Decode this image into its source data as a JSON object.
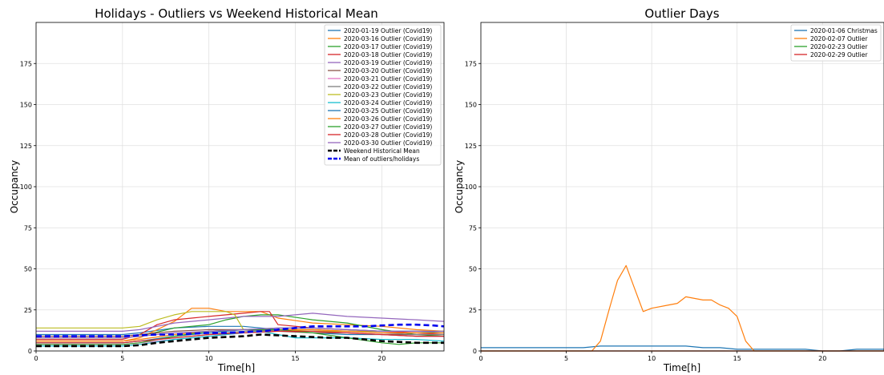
{
  "chart_data": [
    {
      "type": "line",
      "title": "Holidays - Outliers vs Weekend Historical Mean",
      "xlabel": "Time[h]",
      "ylabel": "Occupancy",
      "xlim": [
        0,
        23.6
      ],
      "ylim": [
        0,
        200
      ],
      "xticks": [
        0,
        5,
        10,
        15,
        20
      ],
      "yticks": [
        0,
        25,
        50,
        75,
        100,
        125,
        150,
        175
      ],
      "grid": true,
      "legend": "top-right",
      "series": [
        {
          "name": "2020-01-19 Outlier (Covid19)",
          "color": "#1f77b4",
          "x": [
            0,
            5,
            6,
            8,
            10,
            12,
            13,
            14,
            16,
            18,
            20,
            22,
            23.6
          ],
          "y": [
            10,
            10,
            11,
            14,
            15,
            15,
            14,
            13,
            11,
            10,
            10,
            9,
            9
          ]
        },
        {
          "name": "2020-03-16 Outlier (Covid19)",
          "color": "#ff7f0e",
          "x": [
            0,
            5,
            6,
            7,
            8,
            9,
            10,
            11,
            12,
            13,
            14,
            16,
            18,
            20,
            22,
            23.6
          ],
          "y": [
            6,
            6,
            8,
            13,
            18,
            26,
            26,
            24,
            24,
            24,
            20,
            17,
            16,
            15,
            13,
            12
          ]
        },
        {
          "name": "2020-03-17 Outlier (Covid19)",
          "color": "#2ca02c",
          "x": [
            0,
            5,
            6,
            8,
            10,
            11,
            12,
            13,
            14,
            16,
            18,
            20,
            22,
            23.6
          ],
          "y": [
            8,
            8,
            9,
            14,
            16,
            19,
            21,
            22,
            22,
            19,
            17,
            13,
            10,
            9
          ]
        },
        {
          "name": "2020-03-18 Outlier (Covid19)",
          "color": "#d62728",
          "x": [
            0,
            5,
            6,
            7,
            8,
            9,
            10,
            11,
            12,
            13,
            13.5,
            14,
            16,
            18,
            20,
            22,
            23.6
          ],
          "y": [
            7,
            7,
            10,
            16,
            19,
            20,
            21,
            22,
            23,
            24,
            24,
            16,
            14,
            13,
            12,
            11,
            10
          ]
        },
        {
          "name": "2020-03-19 Outlier (Covid19)",
          "color": "#9467bd",
          "x": [
            0,
            5,
            6,
            8,
            10,
            12,
            14,
            15,
            16,
            18,
            20,
            22,
            23.6
          ],
          "y": [
            12,
            12,
            13,
            17,
            19,
            21,
            21,
            22,
            23,
            21,
            20,
            19,
            18
          ]
        },
        {
          "name": "2020-03-20 Outlier (Covid19)",
          "color": "#8c564b",
          "x": [
            0,
            5,
            6,
            8,
            10,
            12,
            14,
            16,
            18,
            20,
            22,
            23.6
          ],
          "y": [
            9,
            9,
            10,
            12,
            13,
            13,
            12,
            11,
            11,
            10,
            10,
            10
          ]
        },
        {
          "name": "2020-03-21 Outlier (Covid19)",
          "color": "#e377c2",
          "x": [
            0,
            5,
            6,
            8,
            10,
            12,
            14,
            16,
            18,
            20,
            22,
            23.6
          ],
          "y": [
            4,
            4,
            5,
            7,
            9,
            11,
            12,
            12,
            11,
            10,
            9,
            9
          ]
        },
        {
          "name": "2020-03-22 Outlier (Covid19)",
          "color": "#7f7f7f",
          "x": [
            0,
            5,
            6,
            8,
            10,
            12,
            14,
            16,
            18,
            20,
            22,
            23.6
          ],
          "y": [
            5,
            5,
            6,
            8,
            10,
            12,
            13,
            13,
            12,
            11,
            10,
            10
          ]
        },
        {
          "name": "2020-03-23 Outlier (Covid19)",
          "color": "#bcbd22",
          "x": [
            0,
            5,
            6,
            7,
            8,
            9,
            10,
            11,
            11.5,
            12,
            14,
            16,
            18,
            20,
            22,
            23.6
          ],
          "y": [
            14,
            14,
            15,
            19,
            22,
            24,
            24,
            24,
            22,
            13,
            13,
            12,
            12,
            12,
            12,
            12
          ]
        },
        {
          "name": "2020-03-24 Outlier (Covid19)",
          "color": "#17becf",
          "x": [
            0,
            5,
            6,
            8,
            10,
            12,
            13,
            14,
            15,
            16,
            18,
            20,
            22,
            23.6
          ],
          "y": [
            3,
            3,
            4,
            7,
            9,
            11,
            12,
            10,
            8,
            8,
            8,
            7,
            7,
            6
          ]
        },
        {
          "name": "2020-03-25 Outlier (Covid19)",
          "color": "#1f77b4",
          "x": [
            0,
            5,
            6,
            8,
            10,
            12,
            14,
            16,
            18,
            20,
            22,
            23.6
          ],
          "y": [
            5,
            5,
            6,
            9,
            11,
            13,
            14,
            14,
            13,
            12,
            12,
            11
          ]
        },
        {
          "name": "2020-03-26 Outlier (Covid19)",
          "color": "#ff7f0e",
          "x": [
            0,
            5,
            6,
            8,
            10,
            12,
            14,
            16,
            18,
            20,
            22,
            23.6
          ],
          "y": [
            6,
            6,
            7,
            10,
            12,
            13,
            13,
            13,
            12,
            11,
            11,
            11
          ]
        },
        {
          "name": "2020-03-27 Outlier (Covid19)",
          "color": "#2ca02c",
          "x": [
            0,
            5,
            6,
            8,
            10,
            12,
            14,
            16,
            18,
            20,
            21,
            22,
            23.6
          ],
          "y": [
            4,
            4,
            5,
            9,
            12,
            13,
            13,
            11,
            8,
            5,
            4,
            5,
            5
          ]
        },
        {
          "name": "2020-03-28 Outlier (Covid19)",
          "color": "#d62728",
          "x": [
            0,
            5,
            6,
            8,
            10,
            12,
            14,
            16,
            18,
            20,
            22,
            23.6
          ],
          "y": [
            5,
            5,
            6,
            8,
            10,
            11,
            12,
            12,
            11,
            10,
            9,
            9
          ]
        },
        {
          "name": "2020-03-30 Outlier (Covid19)",
          "color": "#9467bd",
          "x": [
            0,
            5,
            6,
            8,
            10,
            12,
            14,
            16,
            18,
            20,
            22,
            23.6
          ],
          "y": [
            8,
            8,
            9,
            11,
            12,
            13,
            14,
            14,
            13,
            12,
            12,
            12
          ]
        },
        {
          "name": "Weekend Historical Mean",
          "color": "#000000",
          "dashed": true,
          "x": [
            0,
            5,
            6,
            7,
            8,
            9,
            10,
            11,
            12,
            13,
            14,
            15,
            16,
            17,
            18,
            19,
            20,
            21,
            22,
            23,
            23.6
          ],
          "y": [
            3,
            3,
            3.5,
            5,
            6,
            7,
            8,
            8.5,
            9,
            10,
            9.5,
            9,
            8.5,
            8,
            8,
            7,
            6,
            5.5,
            5,
            5,
            5
          ]
        },
        {
          "name": "Mean of outliers/holidays",
          "color": "#0000ee",
          "dashed": true,
          "x": [
            0,
            5,
            6,
            7,
            8,
            9,
            10,
            11,
            12,
            13,
            14,
            15,
            16,
            17,
            18,
            19,
            20,
            21,
            22,
            23,
            23.6
          ],
          "y": [
            9,
            9,
            9.5,
            10,
            10,
            10.5,
            11,
            11,
            11.5,
            12,
            13,
            14,
            15,
            15,
            15,
            15,
            15.5,
            16,
            16,
            15.5,
            15
          ]
        }
      ]
    },
    {
      "type": "line",
      "title": "Outlier Days",
      "xlabel": "Time[h]",
      "ylabel": "Occupancy",
      "xlim": [
        0,
        23.6
      ],
      "ylim": [
        0,
        200
      ],
      "xticks": [
        0,
        5,
        10,
        15,
        20
      ],
      "yticks": [
        0,
        25,
        50,
        75,
        100,
        125,
        150,
        175
      ],
      "grid": true,
      "legend": "top-right",
      "series": [
        {
          "name": "2020-01-06 Christmas",
          "color": "#1f77b4",
          "x": [
            0,
            6,
            7,
            8,
            9,
            10,
            11,
            12,
            13,
            14,
            15,
            16,
            17,
            18,
            19,
            20,
            21,
            22,
            23,
            23.6
          ],
          "y": [
            2,
            2,
            3,
            3,
            3,
            3,
            3,
            3,
            2,
            2,
            1,
            1,
            1,
            1,
            1,
            0,
            0,
            1,
            1,
            1
          ]
        },
        {
          "name": "2020-02-07 Outlier",
          "color": "#ff7f0e",
          "x": [
            0,
            6.5,
            7,
            7.5,
            8,
            8.5,
            9,
            9.5,
            10,
            11,
            11.5,
            12,
            13,
            13.5,
            14,
            14.5,
            15,
            15.5,
            16,
            17,
            23.6
          ],
          "y": [
            0,
            0,
            6,
            25,
            43,
            52,
            38,
            24,
            26,
            28,
            29,
            33,
            31,
            31,
            28,
            26,
            21,
            6,
            0,
            0,
            0
          ]
        },
        {
          "name": "2020-02-23 Outlier",
          "color": "#2ca02c",
          "x": [
            0,
            23.6
          ],
          "y": [
            0,
            0
          ]
        },
        {
          "name": "2020-02-29 Outlier",
          "color": "#d62728",
          "x": [
            0,
            23.6
          ],
          "y": [
            0,
            0
          ]
        }
      ]
    }
  ]
}
